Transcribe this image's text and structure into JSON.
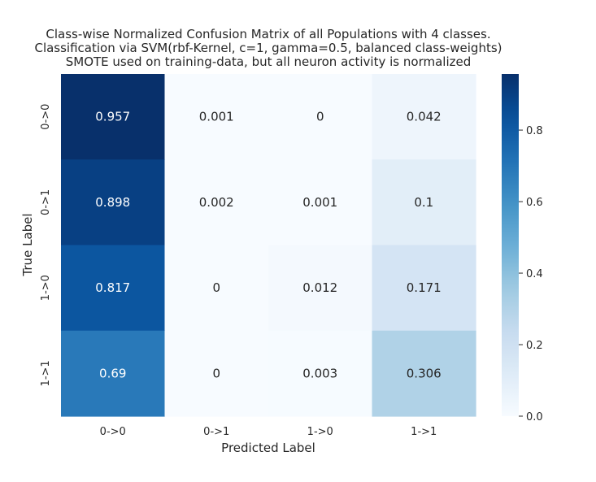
{
  "chart_data": {
    "type": "heatmap",
    "title": [
      "Class-wise Normalized Confusion Matrix of all Populations with 4 classes.",
      "Classification via SVM(rbf-Kernel, c=1, gamma=0.5, balanced class-weights)",
      "SMOTE used on training-data, but all neuron activity is normalized"
    ],
    "xlabel": "Predicted Label",
    "ylabel": "True Label",
    "x_categories": [
      "0->0",
      "0->1",
      "1->0",
      "1->1"
    ],
    "y_categories": [
      "0->0",
      "0->1",
      "1->0",
      "1->1"
    ],
    "values": [
      [
        0.957,
        0.001,
        0,
        0.042
      ],
      [
        0.898,
        0.002,
        0.001,
        0.1
      ],
      [
        0.817,
        0,
        0.012,
        0.171
      ],
      [
        0.69,
        0,
        0.003,
        0.306
      ]
    ],
    "cell_labels": [
      [
        "0.957",
        "0.001",
        "0",
        "0.042"
      ],
      [
        "0.898",
        "0.002",
        "0.001",
        "0.1"
      ],
      [
        "0.817",
        "0",
        "0.012",
        "0.171"
      ],
      [
        "0.69",
        "0",
        "0.003",
        "0.306"
      ]
    ],
    "colormap": "Blues",
    "vmin": 0,
    "vmax": 0.957,
    "colorbar_ticks": [
      0.0,
      0.2,
      0.4,
      0.6,
      0.8
    ],
    "colorbar_tick_labels": [
      "0.0",
      "0.2",
      "0.4",
      "0.6",
      "0.8"
    ]
  }
}
